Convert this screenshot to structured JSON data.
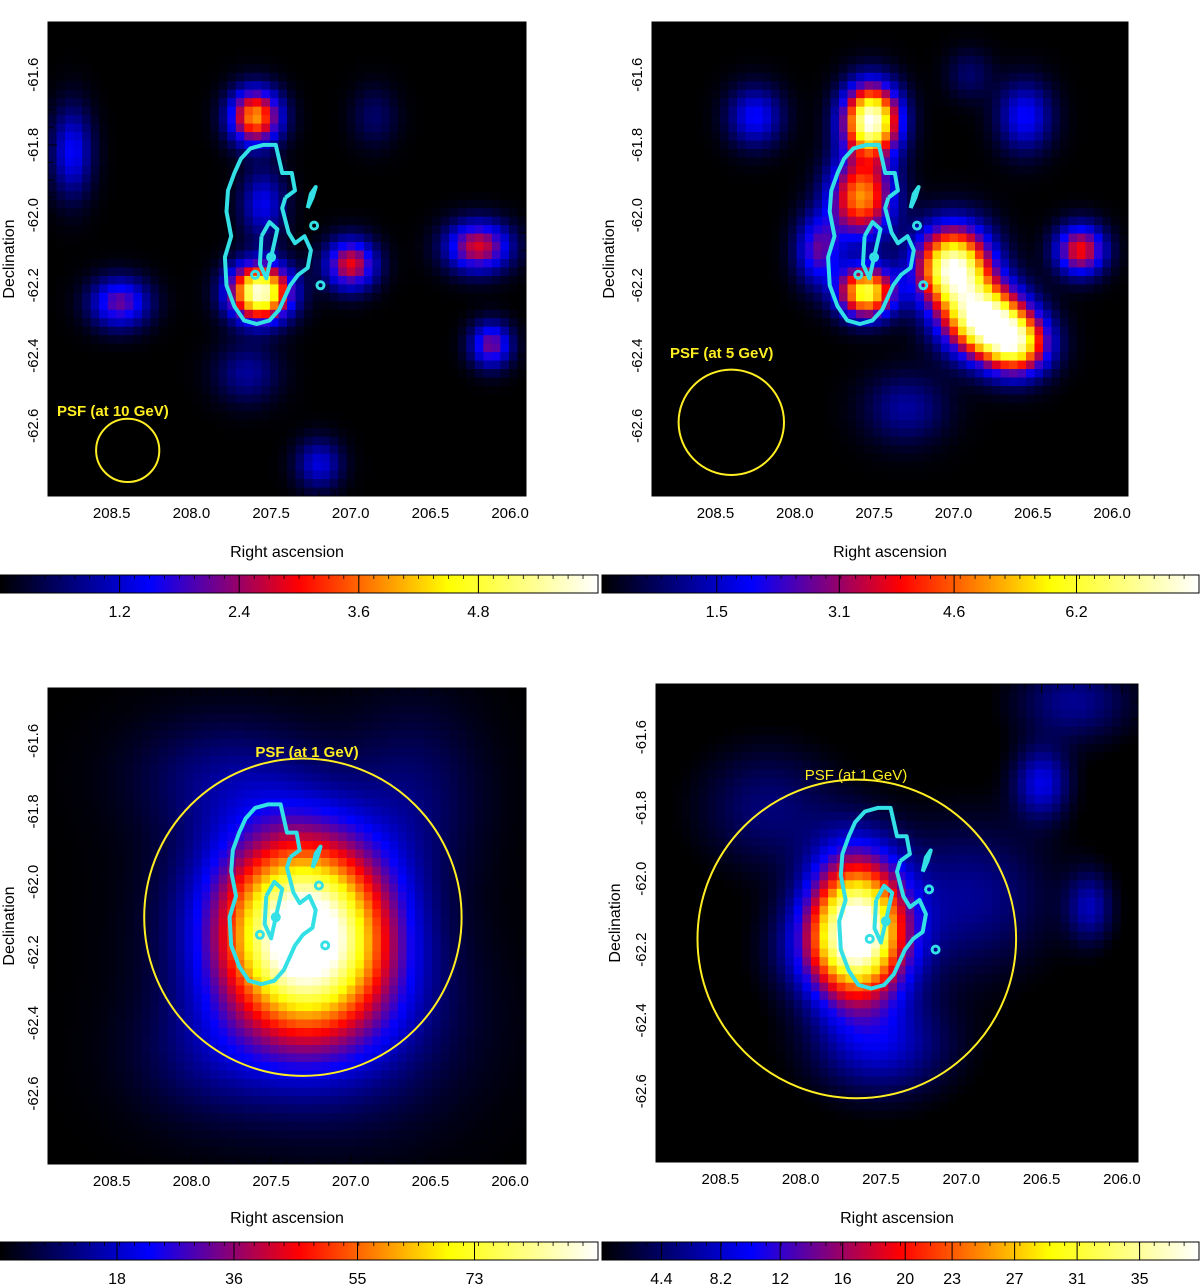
{
  "chart_data": [
    {
      "type": "heatmap",
      "xlabel": "Right ascension",
      "ylabel": "Declination",
      "xlim": [
        208.9,
        205.9
      ],
      "ylim": [
        -62.8,
        -61.45
      ],
      "x_ticks": [
        "208.5",
        "208.0",
        "207.5",
        "207.0",
        "206.5",
        "206.0"
      ],
      "y_ticks": [
        "-61.6",
        "-61.8",
        "-62.0",
        "-62.2",
        "-62.4",
        "-62.6"
      ],
      "psf_label": "PSF (at 10 GeV)",
      "psf_center": [
        208.4,
        -62.67
      ],
      "psf_radius_deg": 0.09,
      "colorbar_ticks": [
        "1.2",
        "2.4",
        "3.6",
        "4.8"
      ],
      "colorbar_range": [
        0,
        6.0
      ],
      "colors": {
        "contour": "#33e0e6",
        "psf": "#ffee22"
      }
    },
    {
      "type": "heatmap",
      "xlabel": "Right ascension",
      "ylabel": "Declination",
      "xlim": [
        208.9,
        205.9
      ],
      "ylim": [
        -62.8,
        -61.45
      ],
      "x_ticks": [
        "208.5",
        "208.0",
        "207.5",
        "207.0",
        "206.5",
        "206.0"
      ],
      "y_ticks": [
        "-61.6",
        "-61.8",
        "-62.0",
        "-62.2",
        "-62.4",
        "-62.6"
      ],
      "psf_label": "PSF (at 5 GeV)",
      "psf_center": [
        208.4,
        -62.59
      ],
      "psf_radius_deg": 0.15,
      "colorbar_ticks": [
        "1.5",
        "3.1",
        "4.6",
        "6.2"
      ],
      "colorbar_range": [
        0,
        7.8
      ],
      "colors": {
        "contour": "#33e0e6",
        "psf": "#ffee22"
      }
    },
    {
      "type": "heatmap",
      "xlabel": "Right ascension",
      "ylabel": "Declination",
      "xlim": [
        208.9,
        205.9
      ],
      "ylim": [
        -62.8,
        -61.45
      ],
      "x_ticks": [
        "208.5",
        "208.0",
        "207.5",
        "207.0",
        "206.5",
        "206.0"
      ],
      "y_ticks": [
        "-61.6",
        "-61.8",
        "-62.0",
        "-62.2",
        "-62.4",
        "-62.6"
      ],
      "psf_label": "PSF (at 1 GeV)",
      "psf_center": [
        207.3,
        -62.1
      ],
      "psf_radius_deg": 0.45,
      "colorbar_ticks": [
        "18",
        "36",
        "55",
        "73"
      ],
      "colorbar_range": [
        0,
        92
      ],
      "colors": {
        "contour": "#33e0e6",
        "psf": "#ffee22"
      }
    },
    {
      "type": "heatmap",
      "xlabel": "Right ascension",
      "ylabel": "Declination",
      "xlim": [
        208.9,
        205.9
      ],
      "ylim": [
        -62.8,
        -61.45
      ],
      "x_ticks": [
        "208.5",
        "208.0",
        "207.5",
        "207.0",
        "206.5",
        "206.0"
      ],
      "y_ticks": [
        "-61.6",
        "-61.8",
        "-62.0",
        "-62.2",
        "-62.4",
        "-62.6"
      ],
      "psf_label": "PSF (at 1 GeV)",
      "psf_center": [
        207.65,
        -62.17
      ],
      "psf_radius_deg": 0.45,
      "colorbar_ticks": [
        "4.4",
        "8.2",
        "12",
        "16",
        "20",
        "23",
        "27",
        "31",
        "35"
      ],
      "colorbar_range": [
        0.6,
        38.8
      ],
      "colors": {
        "contour": "#33e0e6",
        "psf": "#ffee22"
      }
    }
  ]
}
